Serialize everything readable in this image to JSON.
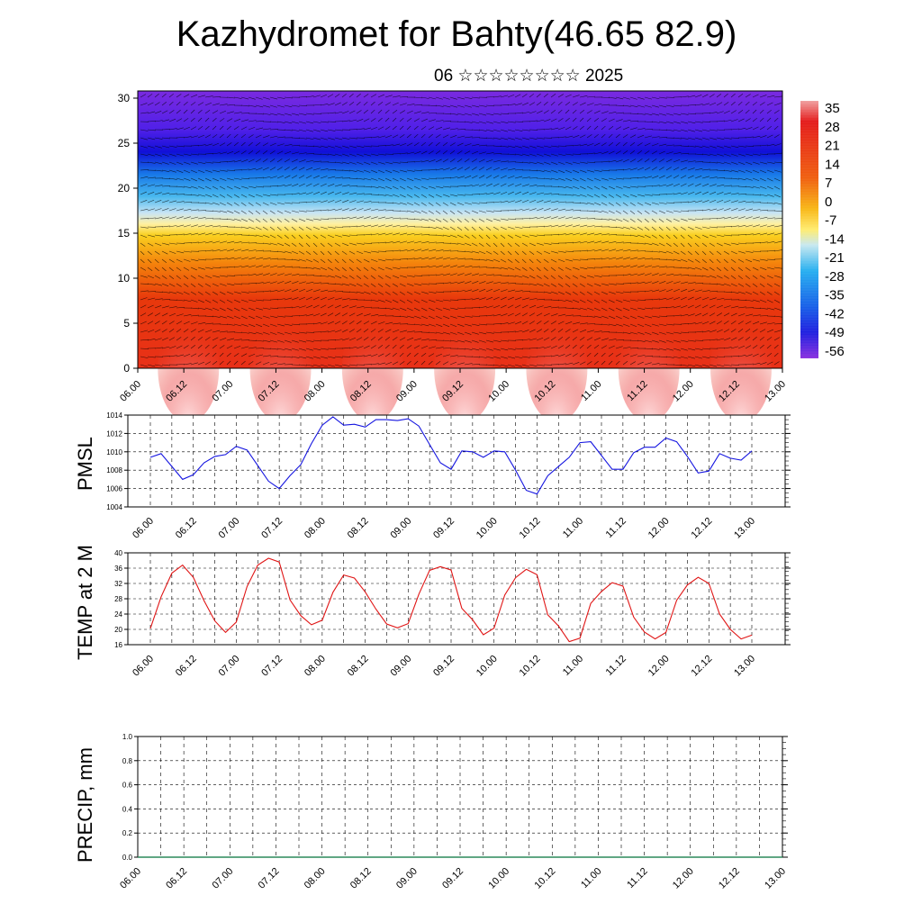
{
  "header": {
    "title": "Kazhydromet for Bahty(46.65 82.9)",
    "subtitle": "06 ☆☆☆☆☆☆☆☆ 2025"
  },
  "colors": {
    "pmsl_line": "#1515e0",
    "temp_line": "#e01515",
    "grid": "#000000"
  },
  "chart_data": [
    {
      "name": "cross-section",
      "type": "heatmap",
      "x_ticks": [
        "06.00",
        "06.12",
        "07.00",
        "07.12",
        "08.00",
        "08.12",
        "09.00",
        "09.12",
        "10.00",
        "10.12",
        "11.00",
        "11.12",
        "12.00",
        "12.12",
        "13.00"
      ],
      "y_ticks": [
        "0",
        "5",
        "10",
        "15",
        "20",
        "25",
        "30"
      ],
      "ylim": [
        0,
        30.8
      ],
      "colorbar_labels": [
        "35",
        "28",
        "21",
        "14",
        "7",
        "0",
        "-7",
        "-14",
        "-21",
        "-28",
        "-35",
        "-42",
        "-49",
        "-56"
      ],
      "colorbar_range": [
        -63,
        40
      ],
      "overlay": "wind vectors"
    },
    {
      "name": "pmsl",
      "type": "line",
      "ylabel": "PMSL",
      "ylim": [
        1004,
        1014
      ],
      "y_ticks": [
        "1014",
        "1012",
        "1010",
        "1008",
        "1006",
        "1004"
      ],
      "x_ticks": [
        "06.00",
        "06.12",
        "07.00",
        "07.12",
        "08.00",
        "08.12",
        "09.00",
        "09.12",
        "10.00",
        "10.12",
        "11.00",
        "11.12",
        "12.00",
        "12.12",
        "13.00"
      ],
      "x": [
        0,
        3,
        6,
        9,
        12,
        15,
        18,
        21,
        24,
        27,
        30,
        33,
        36,
        39,
        42,
        45,
        48,
        51,
        54,
        57,
        60,
        63,
        66,
        69,
        72,
        75,
        78,
        81,
        84,
        87,
        90,
        93,
        96,
        99,
        102,
        105,
        108,
        111,
        114,
        117,
        120,
        123,
        126,
        129,
        132,
        135,
        138,
        141,
        144,
        147,
        150,
        153,
        156,
        159,
        162,
        165,
        168
      ],
      "values": [
        1009.4,
        1009.8,
        1008.4,
        1007.0,
        1007.5,
        1008.8,
        1009.5,
        1009.7,
        1010.6,
        1010.2,
        1008.5,
        1006.8,
        1006.0,
        1007.4,
        1008.6,
        1010.9,
        1012.9,
        1013.8,
        1012.9,
        1013.0,
        1012.7,
        1013.5,
        1013.5,
        1013.4,
        1013.6,
        1012.8,
        1010.8,
        1008.8,
        1008.1,
        1010.1,
        1010.0,
        1009.4,
        1010.1,
        1010.0,
        1008.0,
        1005.8,
        1005.4,
        1007.4,
        1008.4,
        1009.4,
        1011.0,
        1011.1,
        1009.6,
        1008.1,
        1008.1,
        1009.9,
        1010.5,
        1010.5,
        1011.5,
        1011.1,
        1009.5,
        1007.7,
        1007.9,
        1009.8,
        1009.3,
        1009.1,
        1010.1
      ]
    },
    {
      "name": "temp",
      "type": "line",
      "ylabel": "TEMP at 2 M",
      "ylim": [
        16,
        40
      ],
      "y_ticks": [
        "40",
        "36",
        "32",
        "28",
        "24",
        "20",
        "16"
      ],
      "x_ticks": [
        "06.00",
        "06.12",
        "07.00",
        "07.12",
        "08.00",
        "08.12",
        "09.00",
        "09.12",
        "10.00",
        "10.12",
        "11.00",
        "11.12",
        "12.00",
        "12.12",
        "13.00"
      ],
      "x": [
        0,
        3,
        6,
        9,
        12,
        15,
        18,
        21,
        24,
        27,
        30,
        33,
        36,
        39,
        42,
        45,
        48,
        51,
        54,
        57,
        60,
        63,
        66,
        69,
        72,
        75,
        78,
        81,
        84,
        87,
        90,
        93,
        96,
        99,
        102,
        105,
        108,
        111,
        114,
        117,
        120,
        123,
        126,
        129,
        132,
        135,
        138,
        141,
        144,
        147,
        150,
        153,
        156,
        159,
        162,
        165,
        168
      ],
      "values": [
        20.2,
        28.5,
        34.7,
        36.8,
        33.6,
        27.5,
        22.2,
        19.2,
        21.9,
        31.2,
        36.8,
        38.6,
        37.6,
        27.7,
        23.6,
        21.2,
        22.4,
        29.7,
        34.2,
        33.4,
        29.8,
        25.3,
        21.4,
        20.4,
        21.5,
        29.2,
        35.4,
        36.4,
        35.5,
        25.5,
        22.5,
        18.6,
        20.3,
        29.0,
        33.5,
        35.7,
        34.3,
        23.8,
        20.9,
        16.8,
        17.7,
        26.8,
        29.9,
        32.2,
        31.3,
        23.2,
        19.3,
        17.5,
        19.2,
        27.6,
        31.6,
        33.6,
        32.0,
        24.0,
        20.0,
        17.5,
        18.5
      ]
    },
    {
      "name": "precip",
      "type": "line",
      "ylabel": "PRECIP, mm",
      "ylim": [
        0,
        1
      ],
      "y_ticks": [
        "1.0",
        "0.8",
        "0.6",
        "0.4",
        "0.2",
        "0.0"
      ],
      "x_ticks": [
        "06.00",
        "06.12",
        "07.00",
        "07.12",
        "08.00",
        "08.12",
        "09.00",
        "09.12",
        "10.00",
        "10.12",
        "11.00",
        "11.12",
        "12.00",
        "12.12",
        "13.00"
      ],
      "values": [
        0,
        0,
        0,
        0,
        0,
        0,
        0,
        0,
        0,
        0,
        0,
        0,
        0,
        0,
        0
      ]
    }
  ]
}
